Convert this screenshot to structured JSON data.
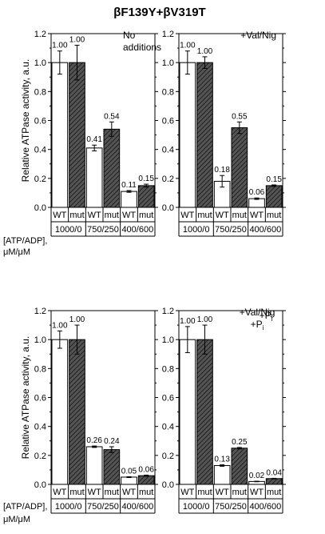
{
  "figure": {
    "title": "βF139Y+βV319T"
  },
  "row_header": {
    "line1": "[ATP/ADP],",
    "line2": "μM/μM"
  },
  "colors": {
    "wt": "#ffffff",
    "mut": "#555555",
    "stroke": "#000000"
  },
  "chart_data": [
    {
      "type": "bar",
      "annotation": [
        "No",
        "additions"
      ],
      "ylabel": "Relative ATPase activity, a.u.",
      "ylim": [
        0,
        1.2
      ],
      "yticks": [
        "0.0",
        "0.2",
        "0.4",
        "0.6",
        "0.8",
        "1.0",
        "1.2"
      ],
      "conditions": [
        "1000/0",
        "750/250",
        "400/600"
      ],
      "genotypes": [
        "WT",
        "mut"
      ],
      "series": [
        {
          "values": [
            1.0,
            0.41,
            0.11
          ],
          "errors": [
            0.08,
            0.02,
            0.006
          ],
          "labels": [
            "1.00",
            "0.41",
            "0.11"
          ]
        },
        {
          "values": [
            1.0,
            0.54,
            0.15
          ],
          "errors": [
            0.12,
            0.05,
            0.01
          ],
          "labels": [
            "1.00",
            "0.54",
            "0.15"
          ]
        }
      ]
    },
    {
      "type": "bar",
      "annotation": [
        "+Val/Nig"
      ],
      "ylabel": "",
      "ylim": [
        0,
        1.2
      ],
      "yticks": [
        "0.0",
        "0.2",
        "0.4",
        "0.6",
        "0.8",
        "1.0",
        "1.2"
      ],
      "conditions": [
        "1000/0",
        "750/250",
        "400/600"
      ],
      "genotypes": [
        "WT",
        "mut"
      ],
      "series": [
        {
          "values": [
            1.0,
            0.18,
            0.06
          ],
          "errors": [
            0.08,
            0.04,
            0.005
          ],
          "labels": [
            "1.00",
            "0.18",
            "0.06"
          ]
        },
        {
          "values": [
            1.0,
            0.55,
            0.15
          ],
          "errors": [
            0.04,
            0.04,
            0.005
          ],
          "labels": [
            "1.00",
            "0.55",
            "0.15"
          ]
        }
      ]
    },
    {
      "type": "bar",
      "annotation": [
        "+Pi"
      ],
      "ylabel": "Relative ATPase activity, a.u.",
      "ylim": [
        0,
        1.2
      ],
      "yticks": [
        "0.0",
        "0.2",
        "0.4",
        "0.6",
        "0.8",
        "1.0",
        "1.2"
      ],
      "conditions": [
        "1000/0",
        "750/250",
        "400/600"
      ],
      "genotypes": [
        "WT",
        "mut"
      ],
      "series": [
        {
          "values": [
            1.0,
            0.26,
            0.05
          ],
          "errors": [
            0.06,
            0.005,
            0.003
          ],
          "labels": [
            "1.00",
            "0.26",
            "0.05"
          ]
        },
        {
          "values": [
            1.0,
            0.24,
            0.06
          ],
          "errors": [
            0.1,
            0.02,
            0.004
          ],
          "labels": [
            "1.00",
            "0.24",
            "0.06"
          ]
        }
      ]
    },
    {
      "type": "bar",
      "annotation": [
        "+Val/Nig",
        "+Pi"
      ],
      "ylabel": "",
      "ylim": [
        0,
        1.2
      ],
      "yticks": [
        "0.0",
        "0.2",
        "0.4",
        "0.6",
        "0.8",
        "1.0",
        "1.2"
      ],
      "conditions": [
        "1000/0",
        "750/250",
        "400/600"
      ],
      "genotypes": [
        "WT",
        "mut"
      ],
      "series": [
        {
          "values": [
            1.0,
            0.13,
            0.02
          ],
          "errors": [
            0.09,
            0.005,
            0.002
          ],
          "labels": [
            "1.00",
            "0.13",
            "0.02"
          ]
        },
        {
          "values": [
            1.0,
            0.25,
            0.04
          ],
          "errors": [
            0.1,
            0.005,
            0.002
          ],
          "labels": [
            "1.00",
            "0.25",
            "0.04"
          ]
        }
      ]
    }
  ]
}
